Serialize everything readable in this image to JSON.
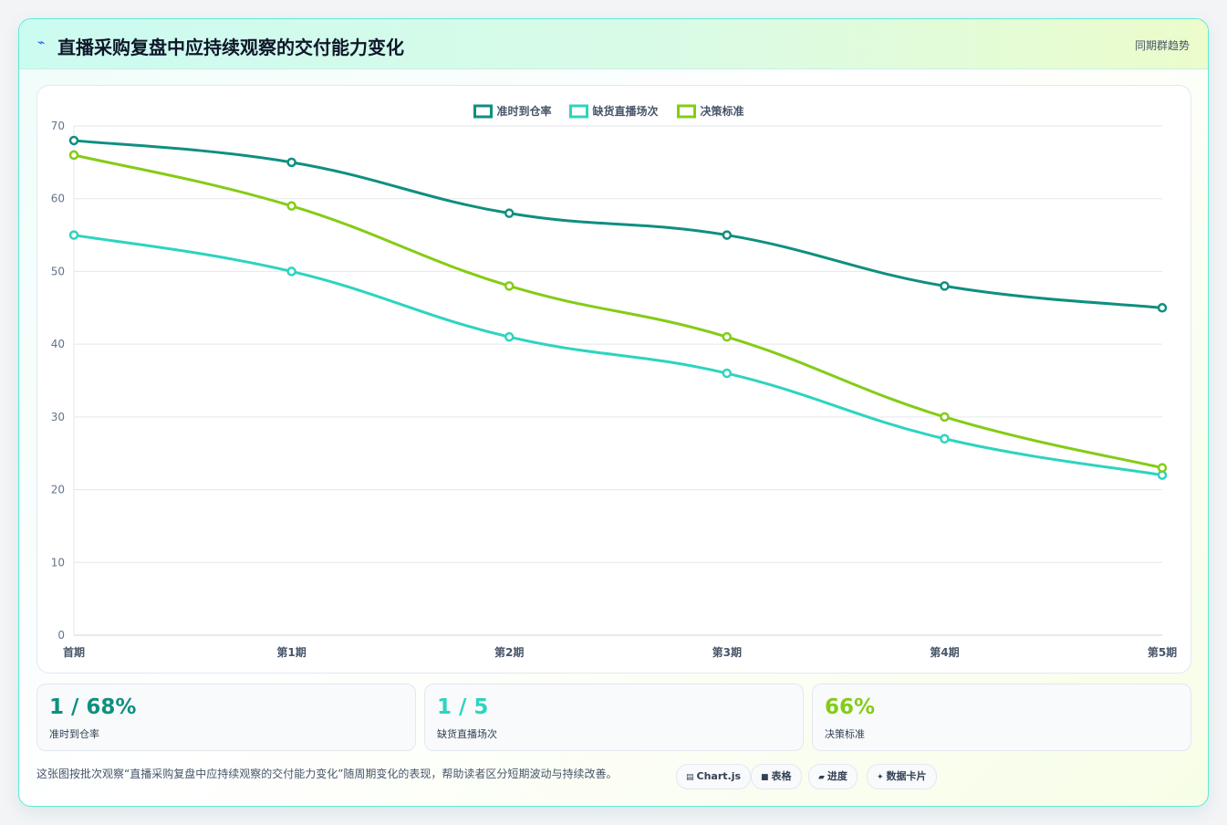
{
  "header": {
    "icon": "lightning-icon",
    "title": "直播采购复盘中应持续观察的交付能力变化",
    "tag": "同期群趋势"
  },
  "chart_data": {
    "type": "line",
    "categories": [
      "首期",
      "第1期",
      "第2期",
      "第3期",
      "第4期",
      "第5期"
    ],
    "series": [
      {
        "name": "准时到仓率",
        "color": "#0f8f80",
        "values": [
          68,
          65,
          58,
          55,
          48,
          45
        ]
      },
      {
        "name": "缺货直播场次",
        "color": "#2dd4bf",
        "values": [
          55,
          50,
          41,
          36,
          27,
          22
        ]
      },
      {
        "name": "决策标准",
        "color": "#84cc16",
        "values": [
          66,
          59,
          48,
          41,
          30,
          23
        ]
      }
    ],
    "ylim": [
      0,
      70
    ],
    "yticks": [
      0,
      10,
      20,
      30,
      40,
      50,
      60,
      70
    ],
    "grid": true,
    "legend": "top-center"
  },
  "stats": [
    {
      "value": "1 / 68%",
      "label": "准时到仓率",
      "color": "#0f8f80"
    },
    {
      "value": "1 / 5",
      "label": "缺货直播场次",
      "color": "#2dd4bf"
    },
    {
      "value": "66%",
      "label": "决策标准",
      "color": "#84cc16"
    }
  ],
  "footer": {
    "text": "这张图按批次观察“直播采购复盘中应持续观察的交付能力变化”随周期变化的表现，帮助读者区分短期波动与持续改善。",
    "pills": [
      {
        "icon": "chart-icon",
        "glyph": "▤",
        "label": "Chart.js"
      },
      {
        "icon": "table-icon",
        "glyph": "■",
        "label": "表格"
      },
      {
        "icon": "progress-icon",
        "glyph": "▰",
        "label": "进度"
      },
      {
        "icon": "card-icon",
        "glyph": "✦",
        "label": "数据卡片"
      }
    ]
  }
}
